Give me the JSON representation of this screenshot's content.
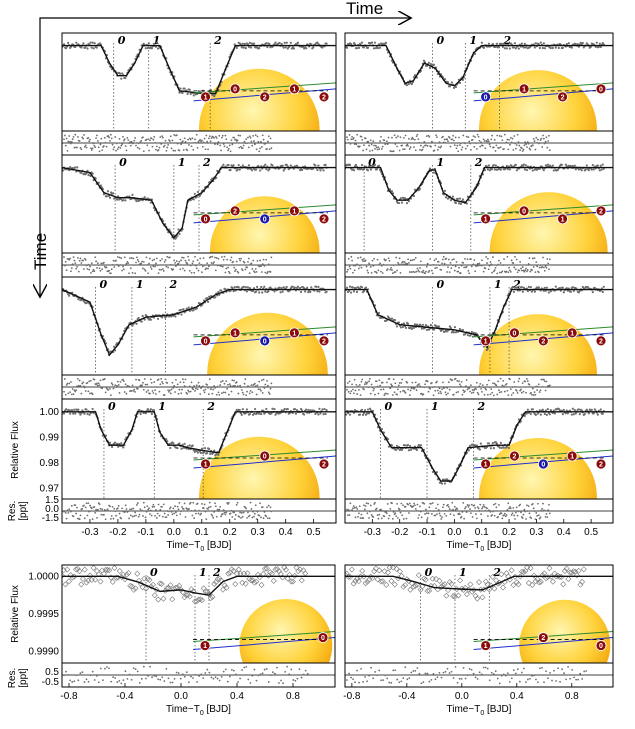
{
  "arrows": {
    "top_label": "Time",
    "left_label": "Time"
  },
  "colors": {
    "blue": "#1f2fd0",
    "green": "#2d8a2d",
    "marker_red": "#8b0a0a",
    "marker_blue": "#1a1aa8",
    "star_light": "#fff2a0",
    "star_dark": "#f0a000",
    "data_gray": "#6e6e6e",
    "model": "#111111"
  },
  "epoch_labels": [
    "0",
    "1",
    "2"
  ],
  "chart_data": [
    {
      "type": "scatter",
      "panel": "A1",
      "xlim": [
        -0.4,
        0.58
      ],
      "ylim": [
        0.966,
        1.005
      ],
      "epochs_x": [
        -0.215,
        -0.09,
        0.13
      ],
      "model": [
        [
          -0.4,
          1.0
        ],
        [
          -0.26,
          1.0
        ],
        [
          -0.23,
          0.993
        ],
        [
          -0.2,
          0.988
        ],
        [
          -0.17,
          0.988
        ],
        [
          -0.14,
          0.993
        ],
        [
          -0.11,
          1.0
        ],
        [
          -0.05,
          1.0
        ],
        [
          -0.02,
          0.992
        ],
        [
          0.02,
          0.982
        ],
        [
          0.1,
          0.981
        ],
        [
          0.15,
          0.981
        ],
        [
          0.19,
          0.992
        ],
        [
          0.22,
          1.0
        ],
        [
          0.58,
          1.0
        ]
      ]
    },
    {
      "type": "scatter",
      "panel": "A2",
      "xlim": [
        -0.4,
        0.58
      ],
      "ylim": [
        0.966,
        1.005
      ],
      "epochs_x": [
        -0.08,
        0.04,
        0.165
      ],
      "model": [
        [
          -0.4,
          1.0
        ],
        [
          -0.25,
          1.0
        ],
        [
          -0.21,
          0.991
        ],
        [
          -0.18,
          0.985
        ],
        [
          -0.15,
          0.986
        ],
        [
          -0.11,
          0.993
        ],
        [
          -0.07,
          0.991
        ],
        [
          -0.03,
          0.985
        ],
        [
          0.0,
          0.984
        ],
        [
          0.03,
          0.987
        ],
        [
          0.07,
          0.997
        ],
        [
          0.1,
          1.0
        ],
        [
          0.58,
          1.0
        ]
      ]
    },
    {
      "type": "scatter",
      "panel": "B1",
      "xlim": [
        -0.4,
        0.58
      ],
      "ylim": [
        0.966,
        1.005
      ],
      "epochs_x": [
        -0.21,
        0.0,
        0.09
      ],
      "model": [
        [
          -0.4,
          1.0
        ],
        [
          -0.3,
          0.998
        ],
        [
          -0.25,
          0.99
        ],
        [
          -0.2,
          0.988
        ],
        [
          -0.15,
          0.988
        ],
        [
          -0.08,
          0.987
        ],
        [
          -0.04,
          0.978
        ],
        [
          0.0,
          0.972
        ],
        [
          0.03,
          0.976
        ],
        [
          0.05,
          0.987
        ],
        [
          0.1,
          0.99
        ],
        [
          0.14,
          0.995
        ],
        [
          0.17,
          1.0
        ],
        [
          0.58,
          1.0
        ]
      ]
    },
    {
      "type": "scatter",
      "panel": "B2",
      "xlim": [
        -0.4,
        0.58
      ],
      "ylim": [
        0.966,
        1.005
      ],
      "epochs_x": [
        -0.33,
        -0.08,
        0.06
      ],
      "model": [
        [
          -0.4,
          1.0
        ],
        [
          -0.27,
          1.0
        ],
        [
          -0.24,
          0.991
        ],
        [
          -0.21,
          0.987
        ],
        [
          -0.17,
          0.987
        ],
        [
          -0.13,
          0.992
        ],
        [
          -0.09,
          0.999
        ],
        [
          -0.07,
          0.999
        ],
        [
          -0.04,
          0.99
        ],
        [
          0.0,
          0.987
        ],
        [
          0.04,
          0.986
        ],
        [
          0.08,
          0.992
        ],
        [
          0.11,
          1.0
        ],
        [
          0.58,
          1.0
        ]
      ]
    },
    {
      "type": "scatter",
      "panel": "C1",
      "xlim": [
        -0.4,
        0.58
      ],
      "ylim": [
        0.966,
        1.005
      ],
      "epochs_x": [
        -0.28,
        -0.15,
        -0.03
      ],
      "model": [
        [
          -0.4,
          1.0
        ],
        [
          -0.3,
          0.995
        ],
        [
          -0.26,
          0.982
        ],
        [
          -0.23,
          0.974
        ],
        [
          -0.2,
          0.978
        ],
        [
          -0.16,
          0.986
        ],
        [
          -0.1,
          0.989
        ],
        [
          0.0,
          0.99
        ],
        [
          0.08,
          0.993
        ],
        [
          0.15,
          0.998
        ],
        [
          0.2,
          1.0
        ],
        [
          0.58,
          1.0
        ]
      ]
    },
    {
      "type": "scatter",
      "panel": "C2",
      "xlim": [
        -0.4,
        0.58
      ],
      "ylim": [
        0.966,
        1.005
      ],
      "epochs_x": [
        -0.08,
        0.13,
        0.2
      ],
      "model": [
        [
          -0.4,
          1.0
        ],
        [
          -0.32,
          1.0
        ],
        [
          -0.28,
          0.99
        ],
        [
          -0.2,
          0.986
        ],
        [
          -0.1,
          0.985
        ],
        [
          0.0,
          0.984
        ],
        [
          0.08,
          0.982
        ],
        [
          0.12,
          0.977
        ],
        [
          0.15,
          0.984
        ],
        [
          0.18,
          0.993
        ],
        [
          0.21,
          1.0
        ],
        [
          0.58,
          1.0
        ]
      ]
    },
    {
      "type": "scatter",
      "panel": "D1",
      "xlim": [
        -0.4,
        0.58
      ],
      "ylim": [
        0.966,
        1.005
      ],
      "ylabel": "Relative Flux",
      "yticks": [
        1.0,
        0.99,
        0.98,
        0.97
      ],
      "epochs_x": [
        -0.25,
        -0.07,
        0.105
      ],
      "model": [
        [
          -0.4,
          1.0
        ],
        [
          -0.28,
          1.0
        ],
        [
          -0.26,
          0.993
        ],
        [
          -0.23,
          0.987
        ],
        [
          -0.18,
          0.987
        ],
        [
          -0.15,
          0.993
        ],
        [
          -0.13,
          1.0
        ],
        [
          -0.07,
          1.0
        ],
        [
          -0.05,
          0.992
        ],
        [
          -0.02,
          0.987
        ],
        [
          0.02,
          0.987
        ],
        [
          0.05,
          0.986
        ],
        [
          0.1,
          0.985
        ],
        [
          0.16,
          0.984
        ],
        [
          0.19,
          0.992
        ],
        [
          0.22,
          1.0
        ],
        [
          0.58,
          1.0
        ]
      ]
    },
    {
      "type": "scatter",
      "panel": "D2",
      "xlim": [
        -0.4,
        0.58
      ],
      "ylim": [
        0.966,
        1.005
      ],
      "epochs_x": [
        -0.27,
        -0.1,
        0.07
      ],
      "model": [
        [
          -0.4,
          1.0
        ],
        [
          -0.3,
          1.0
        ],
        [
          -0.27,
          0.993
        ],
        [
          -0.23,
          0.986
        ],
        [
          -0.12,
          0.986
        ],
        [
          -0.08,
          0.978
        ],
        [
          -0.05,
          0.973
        ],
        [
          -0.01,
          0.973
        ],
        [
          0.02,
          0.979
        ],
        [
          0.05,
          0.986
        ],
        [
          0.15,
          0.987
        ],
        [
          0.2,
          0.987
        ],
        [
          0.23,
          0.995
        ],
        [
          0.26,
          1.0
        ],
        [
          0.58,
          1.0
        ]
      ]
    },
    {
      "type": "scatter",
      "panel": "E1",
      "xlim": [
        -0.85,
        1.1
      ],
      "ylim": [
        0.99885,
        1.00015
      ],
      "ylabel": "Relative Flux",
      "yticks": [
        1.0,
        0.9995,
        0.999
      ],
      "epochs_x": [
        -0.25,
        0.1,
        0.2
      ],
      "model": [
        [
          -0.85,
          1.0
        ],
        [
          -0.45,
          1.0
        ],
        [
          -0.3,
          0.99992
        ],
        [
          -0.15,
          0.9998
        ],
        [
          0.0,
          0.99982
        ],
        [
          0.1,
          0.99978
        ],
        [
          0.2,
          0.99975
        ],
        [
          0.3,
          0.99993
        ],
        [
          0.4,
          1.0
        ],
        [
          1.1,
          1.0
        ]
      ]
    },
    {
      "type": "scatter",
      "panel": "E2",
      "xlim": [
        -0.85,
        1.1
      ],
      "ylim": [
        0.99885,
        1.00015
      ],
      "epochs_x": [
        -0.3,
        -0.05,
        0.2
      ],
      "model": [
        [
          -0.85,
          1.0
        ],
        [
          -0.5,
          1.0
        ],
        [
          -0.35,
          0.99993
        ],
        [
          -0.2,
          0.99985
        ],
        [
          0.0,
          0.99983
        ],
        [
          0.15,
          0.99982
        ],
        [
          0.28,
          0.99992
        ],
        [
          0.38,
          1.0
        ],
        [
          1.1,
          1.0
        ]
      ]
    }
  ],
  "axes": {
    "top_xticks": [
      "-0.3",
      "-0.2",
      "-0.1",
      "0.0",
      "0.1",
      "0.2",
      "0.3",
      "0.4",
      "0.5"
    ],
    "top_xticks_val": [
      -0.3,
      -0.2,
      -0.1,
      0.0,
      0.1,
      0.2,
      0.3,
      0.4,
      0.5
    ],
    "bottom_xticks": [
      "-0.8",
      "-0.4",
      "0.0",
      "0.4",
      "0.8"
    ],
    "bottom_xticks_val": [
      -0.8,
      -0.4,
      0.0,
      0.4,
      0.8
    ],
    "xlabel": "Time−T",
    "xlabel_sub": "0",
    "xlabel_unit": " [BJD]",
    "res_label_1": "Res.",
    "res_label_2": "[ppt]",
    "res_ticks_top": [
      "1.5",
      "0.0",
      "-1.5"
    ],
    "res_ticks_bottom": [
      "0.5",
      "-0.5"
    ],
    "flux_ticks_top": [
      "1.00",
      "0.99",
      "0.98",
      "0.97"
    ],
    "flux_ticks_bottom": [
      "1.0000",
      "0.9995",
      "0.9990"
    ]
  },
  "markers": [
    {
      "panel": "A1",
      "items": [
        [
          "1",
          "red"
        ],
        [
          "0",
          "red"
        ],
        [
          "2",
          "red"
        ],
        [
          "1",
          "red"
        ],
        [
          "2",
          "red"
        ]
      ]
    },
    {
      "panel": "A2",
      "items": [
        [
          "0",
          "blue"
        ],
        [
          "1",
          "red"
        ],
        [
          "2",
          "red"
        ],
        [
          "0",
          "red"
        ]
      ]
    },
    {
      "panel": "B1",
      "items": [
        [
          "0",
          "red"
        ],
        [
          "2",
          "red"
        ],
        [
          "0",
          "blue"
        ],
        [
          "1",
          "red"
        ],
        [
          "2",
          "red"
        ]
      ]
    },
    {
      "panel": "B2",
      "items": [
        [
          "1",
          "red"
        ],
        [
          "0",
          "red"
        ],
        [
          "1",
          "red"
        ],
        [
          "2",
          "red"
        ]
      ]
    },
    {
      "panel": "C1",
      "items": [
        [
          "0",
          "red"
        ],
        [
          "1",
          "red"
        ],
        [
          "0",
          "blue"
        ],
        [
          "1",
          "red"
        ],
        [
          "2",
          "red"
        ]
      ]
    },
    {
      "panel": "C2",
      "items": [
        [
          "1",
          "red"
        ],
        [
          "0",
          "red"
        ],
        [
          "2",
          "red"
        ],
        [
          "1",
          "red"
        ],
        [
          "2",
          "red"
        ]
      ]
    },
    {
      "panel": "D1",
      "items": [
        [
          "1",
          "red"
        ],
        [
          "0",
          "red"
        ],
        [
          "2",
          "red"
        ]
      ]
    },
    {
      "panel": "D2",
      "items": [
        [
          "1",
          "red"
        ],
        [
          "2",
          "red"
        ],
        [
          "0",
          "blue"
        ],
        [
          "1",
          "red"
        ],
        [
          "2",
          "red"
        ]
      ]
    },
    {
      "panel": "E1",
      "items": [
        [
          "1",
          "red"
        ],
        [
          "0",
          "red"
        ]
      ]
    },
    {
      "panel": "E2",
      "items": [
        [
          "1",
          "red"
        ],
        [
          "2",
          "red"
        ],
        [
          "0",
          "red"
        ]
      ]
    }
  ]
}
